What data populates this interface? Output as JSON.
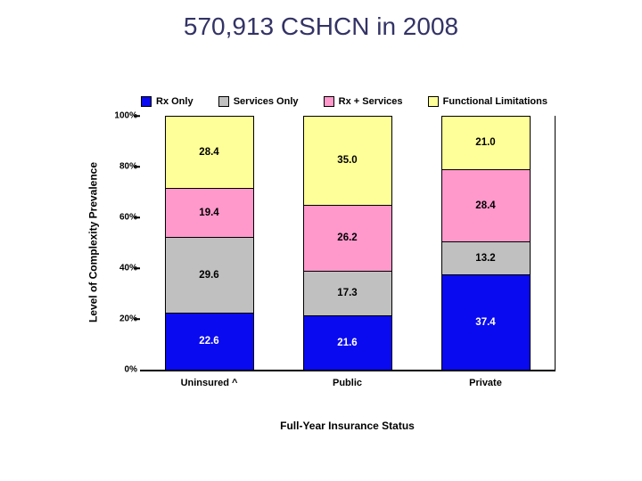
{
  "title": "570,913 CSHCN in 2008",
  "colors": {
    "title_text": "#333366",
    "axis": "#000000",
    "rx_only": "#0a0af0",
    "services_only": "#c0c0c0",
    "rx_plus_services": "#ff99cc",
    "functional_limitations": "#ffff99"
  },
  "chart_data": {
    "type": "bar",
    "stacked": true,
    "title": "570,913 CSHCN in 2008",
    "xlabel": "Full-Year Insurance Status",
    "ylabel": "Level of Complexity Prevalence",
    "ylim": [
      0,
      100
    ],
    "grid": false,
    "legend_position": "top",
    "y_tick_labels_top_to_bottom": [
      "100%",
      "80%",
      "60%",
      "40%",
      "20%",
      "0%"
    ],
    "categories": [
      "Uninsured ^",
      "Public",
      "Private"
    ],
    "series": [
      {
        "name": "Rx Only",
        "color": "#0a0af0",
        "label_color": "#ffffff",
        "values": [
          22.6,
          21.6,
          37.4
        ]
      },
      {
        "name": "Services Only",
        "color": "#c0c0c0",
        "label_color": "#000000",
        "values": [
          29.6,
          17.3,
          13.2
        ]
      },
      {
        "name": "Rx + Services",
        "color": "#ff99cc",
        "label_color": "#000000",
        "values": [
          19.4,
          26.2,
          28.4
        ]
      },
      {
        "name": "Functional Limitations",
        "color": "#ffff99",
        "label_color": "#000000",
        "values": [
          28.4,
          35.0,
          21.0
        ]
      }
    ]
  }
}
